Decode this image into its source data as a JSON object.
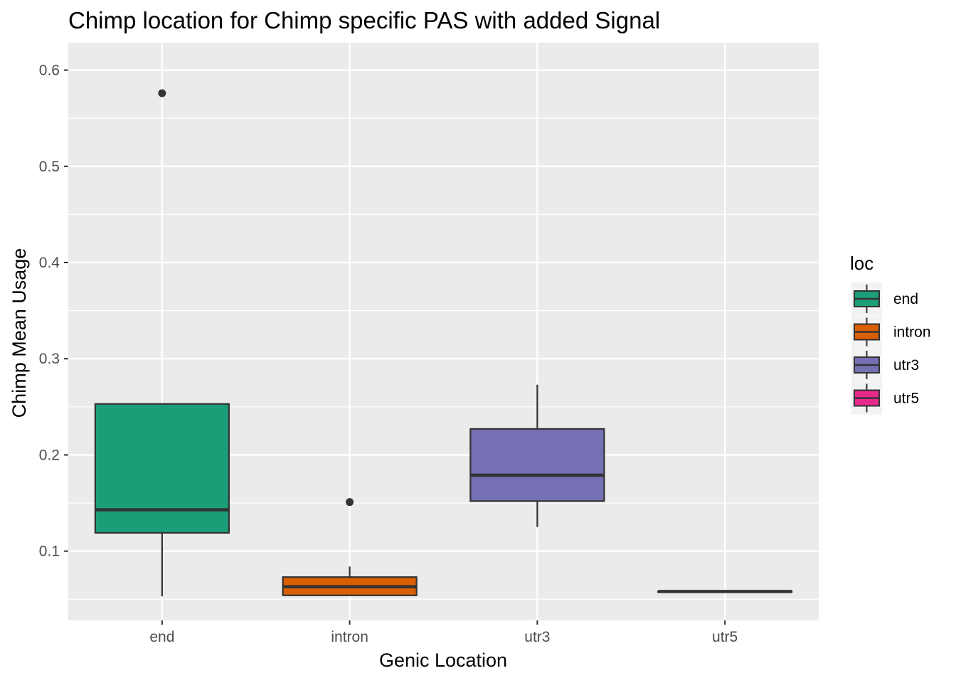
{
  "chart_data": {
    "type": "boxplot",
    "title": "Chimp location for Chimp specific PAS with added Signal",
    "xlabel": "Genic Location",
    "ylabel": "Chimp Mean Usage",
    "ylim": [
      0.028,
      0.6285
    ],
    "yticks": [
      0.1,
      0.2,
      0.3,
      0.4,
      0.5,
      0.6
    ],
    "ytick_labels": [
      "0.1",
      "0.2",
      "0.3",
      "0.4",
      "0.5",
      "0.6"
    ],
    "categories": [
      "end",
      "intron",
      "utr3",
      "utr5"
    ],
    "grid": true,
    "legend": {
      "title": "loc",
      "position": "right",
      "entries": [
        "end",
        "intron",
        "utr3",
        "utr5"
      ]
    },
    "colors": {
      "end": "#1b9e77",
      "intron": "#d95f02",
      "utr3": "#7570b3",
      "utr5": "#e7298a",
      "panel": "#ebebeb",
      "grid": "#ffffff",
      "outline": "#333333"
    },
    "boxes": [
      {
        "category": "end",
        "lower_whisker": 0.053,
        "q1": 0.119,
        "median": 0.143,
        "q3": 0.253,
        "upper_whisker": 0.253,
        "outliers": [
          0.576
        ]
      },
      {
        "category": "intron",
        "lower_whisker": 0.054,
        "q1": 0.054,
        "median": 0.063,
        "q3": 0.073,
        "upper_whisker": 0.084,
        "outliers": [
          0.151
        ]
      },
      {
        "category": "utr3",
        "lower_whisker": 0.125,
        "q1": 0.152,
        "median": 0.179,
        "q3": 0.227,
        "upper_whisker": 0.273,
        "outliers": []
      },
      {
        "category": "utr5",
        "lower_whisker": 0.058,
        "q1": 0.058,
        "median": 0.058,
        "q3": 0.058,
        "upper_whisker": 0.058,
        "outliers": []
      }
    ]
  }
}
